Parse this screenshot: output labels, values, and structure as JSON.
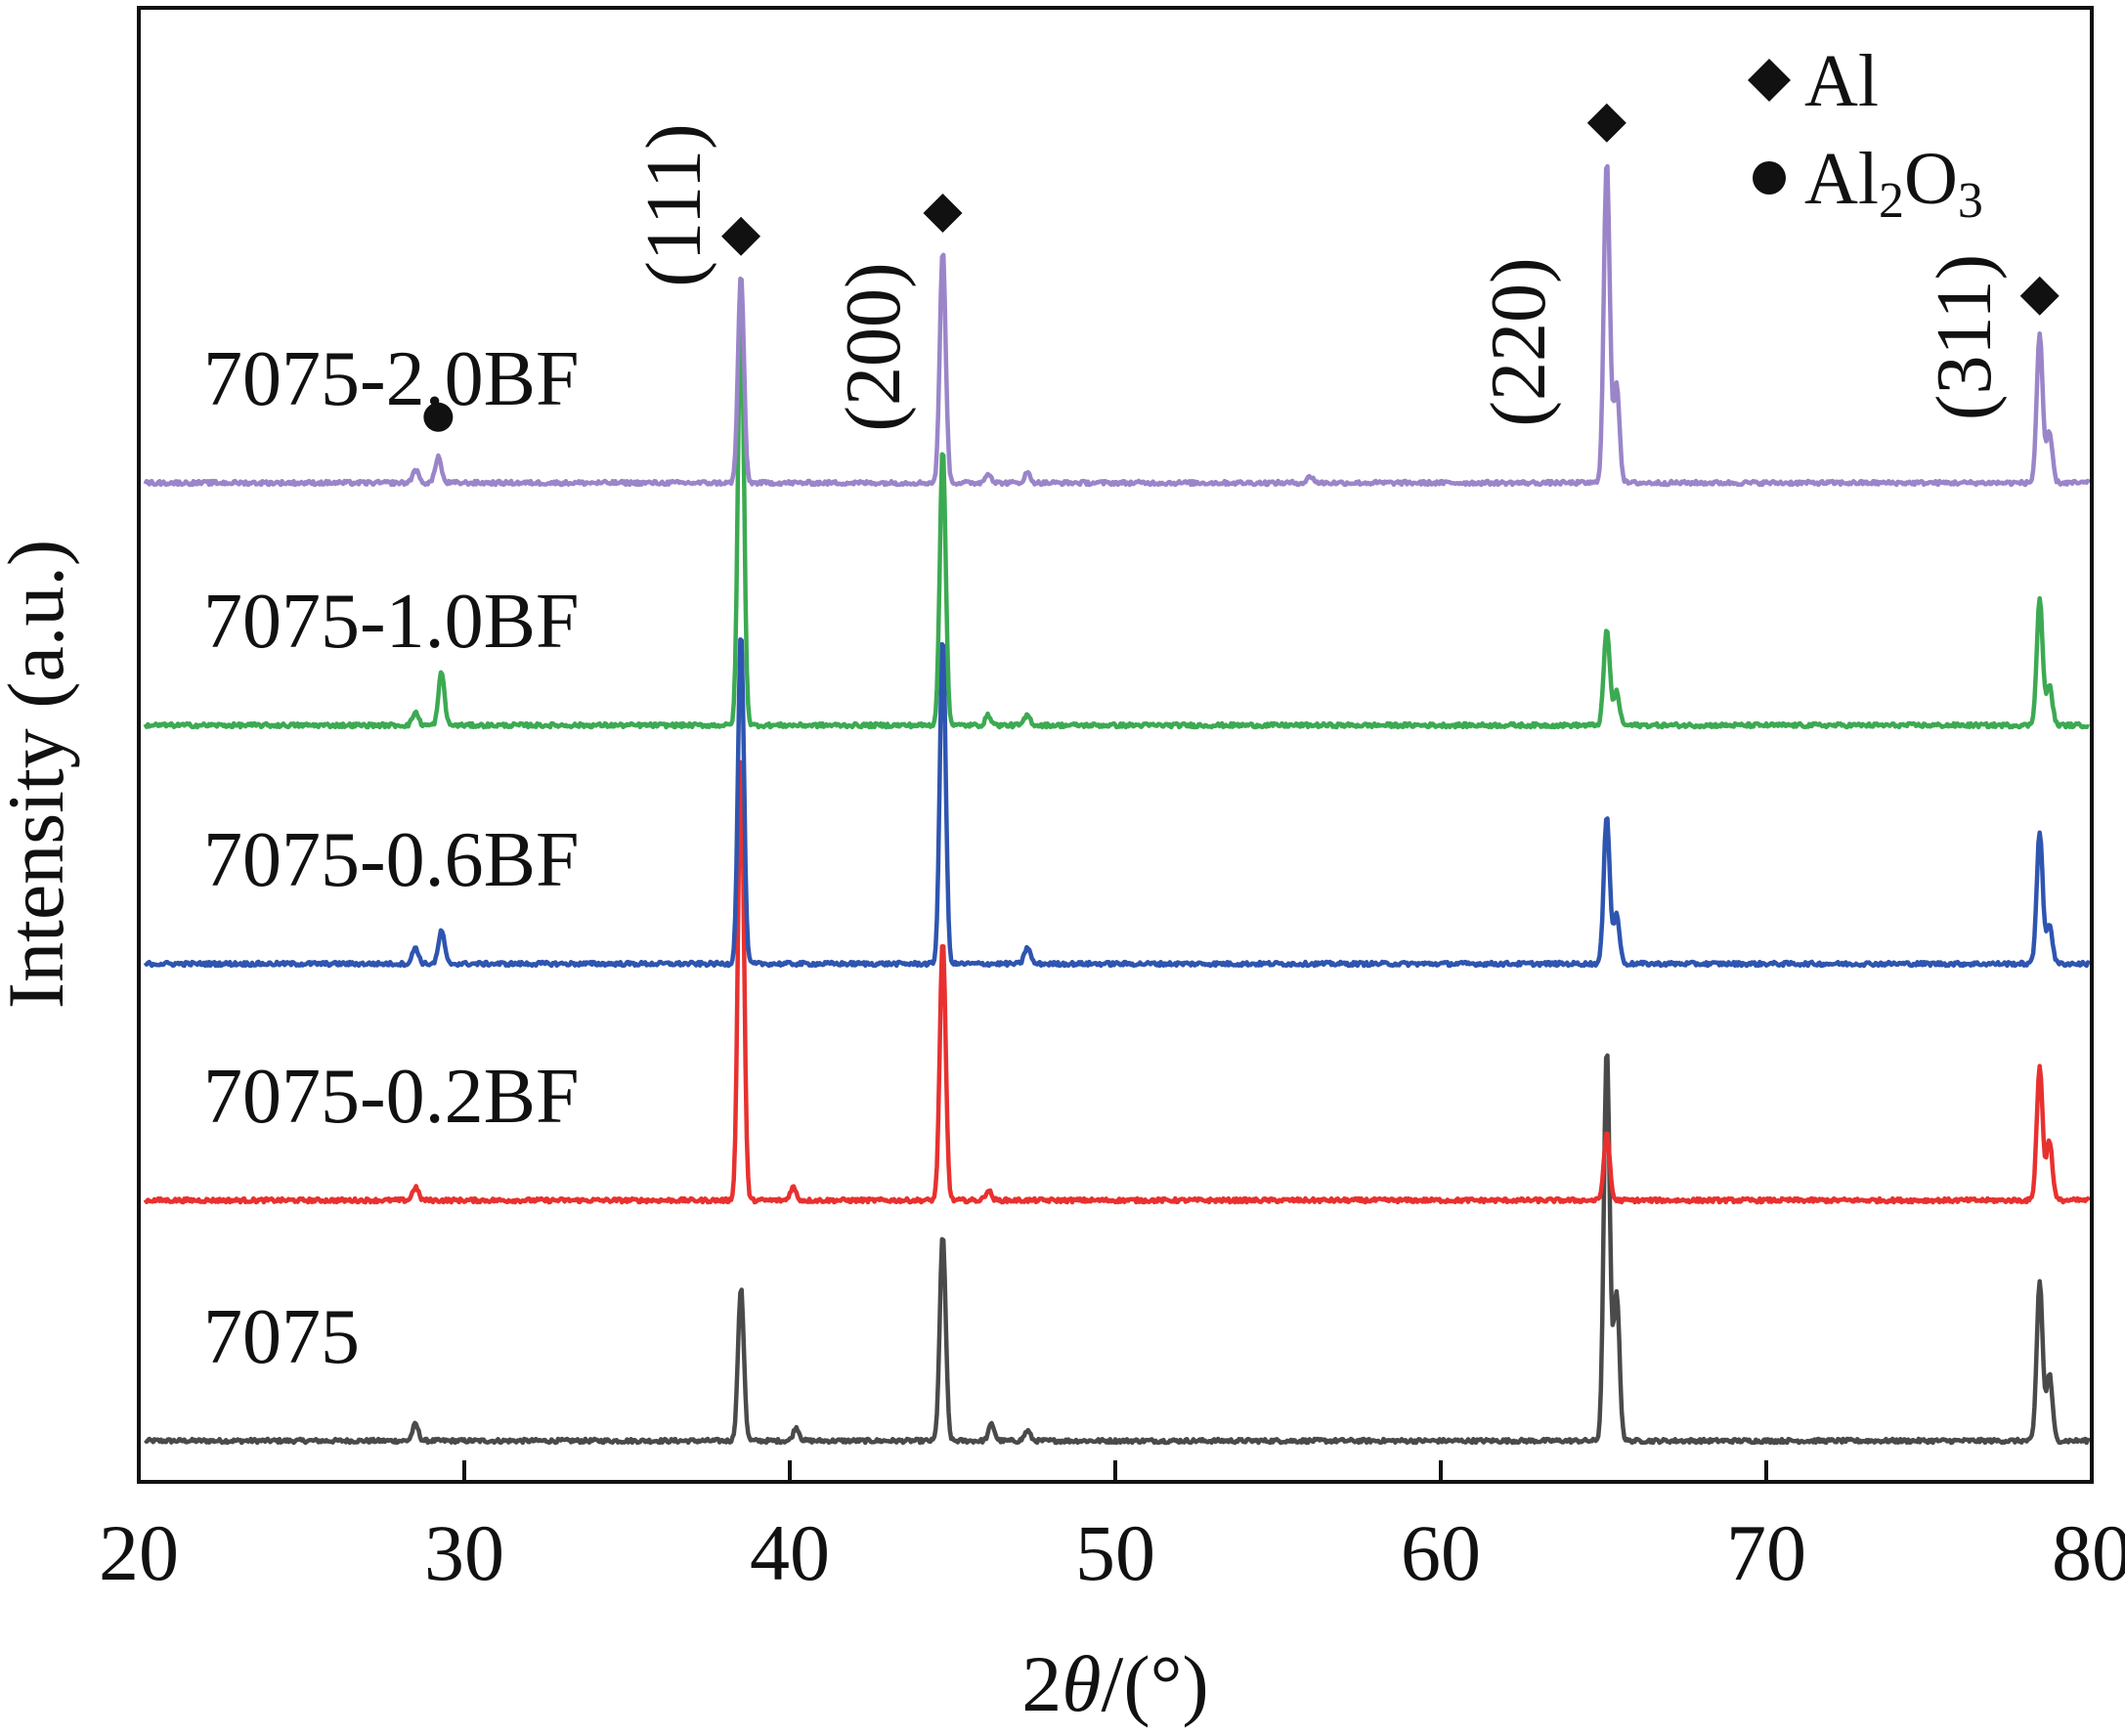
{
  "chart_data": {
    "type": "line",
    "xlabel_prefix": "2",
    "xlabel_symbol": "θ",
    "xlabel_suffix": "/(°)",
    "ylabel": "Intensity (a.u.)",
    "xlim": [
      20,
      80
    ],
    "x_ticks": [
      20,
      30,
      40,
      50,
      60,
      70,
      80
    ],
    "x_tick_labels": [
      "20",
      "30",
      "40",
      "50",
      "60",
      "70",
      "80"
    ],
    "y_ticks": "none",
    "grid": false,
    "legend": {
      "placement": "top-right",
      "entries": [
        {
          "marker": "diamond",
          "label": "Al"
        },
        {
          "marker": "circle",
          "label_parts": [
            "Al",
            "2",
            "O",
            "3"
          ]
        }
      ]
    },
    "annotations": {
      "hkl": [
        {
          "label": "(111)",
          "x": 38.5
        },
        {
          "label": "(200)",
          "x": 44.7
        },
        {
          "label": "(220)",
          "x": 65.1
        },
        {
          "label": "(311)",
          "x": 78.2
        }
      ],
      "al_markers_x": [
        38.5,
        44.7,
        65.1,
        78.4
      ],
      "al2o3_markers_x": [
        29.2
      ]
    },
    "series": [
      {
        "name": "7075",
        "color": "#4a4a4a",
        "peaks": [
          [
            28.5,
            0.05
          ],
          [
            38.5,
            0.46
          ],
          [
            40.2,
            0.04
          ],
          [
            44.7,
            0.62
          ],
          [
            46.2,
            0.05
          ],
          [
            47.3,
            0.03
          ],
          [
            65.1,
            1.18
          ],
          [
            65.4,
            0.45
          ],
          [
            78.4,
            0.48
          ],
          [
            78.7,
            0.2
          ]
        ]
      },
      {
        "name": "7075-0.2BF",
        "color": "#e8312f",
        "peaks": [
          [
            28.5,
            0.04
          ],
          [
            38.5,
            1.35
          ],
          [
            40.1,
            0.04
          ],
          [
            44.7,
            0.78
          ],
          [
            46.1,
            0.03
          ],
          [
            65.1,
            0.2
          ],
          [
            78.4,
            0.4
          ],
          [
            78.7,
            0.18
          ]
        ]
      },
      {
        "name": "7075-0.6BF",
        "color": "#2e55b0",
        "peaks": [
          [
            28.5,
            0.05
          ],
          [
            29.3,
            0.1
          ],
          [
            38.5,
            1.0
          ],
          [
            44.7,
            0.98
          ],
          [
            47.3,
            0.05
          ],
          [
            65.1,
            0.45
          ],
          [
            65.4,
            0.15
          ],
          [
            78.4,
            0.4
          ],
          [
            78.7,
            0.12
          ]
        ]
      },
      {
        "name": "7075-1.0BF",
        "color": "#3caa52",
        "peaks": [
          [
            28.5,
            0.04
          ],
          [
            29.3,
            0.16
          ],
          [
            38.5,
            1.3
          ],
          [
            44.7,
            0.83
          ],
          [
            46.1,
            0.03
          ],
          [
            47.3,
            0.03
          ],
          [
            65.1,
            0.29
          ],
          [
            65.4,
            0.1
          ],
          [
            78.4,
            0.38
          ],
          [
            78.7,
            0.12
          ]
        ]
      },
      {
        "name": "7075-2.0BF",
        "color": "#9a85c9",
        "peaks": [
          [
            28.5,
            0.04
          ],
          [
            29.2,
            0.08
          ],
          [
            38.5,
            0.63
          ],
          [
            44.7,
            0.7
          ],
          [
            46.1,
            0.03
          ],
          [
            47.3,
            0.03
          ],
          [
            56.0,
            0.02
          ],
          [
            65.1,
            0.97
          ],
          [
            65.4,
            0.3
          ],
          [
            78.4,
            0.45
          ],
          [
            78.7,
            0.15
          ]
        ]
      }
    ]
  }
}
